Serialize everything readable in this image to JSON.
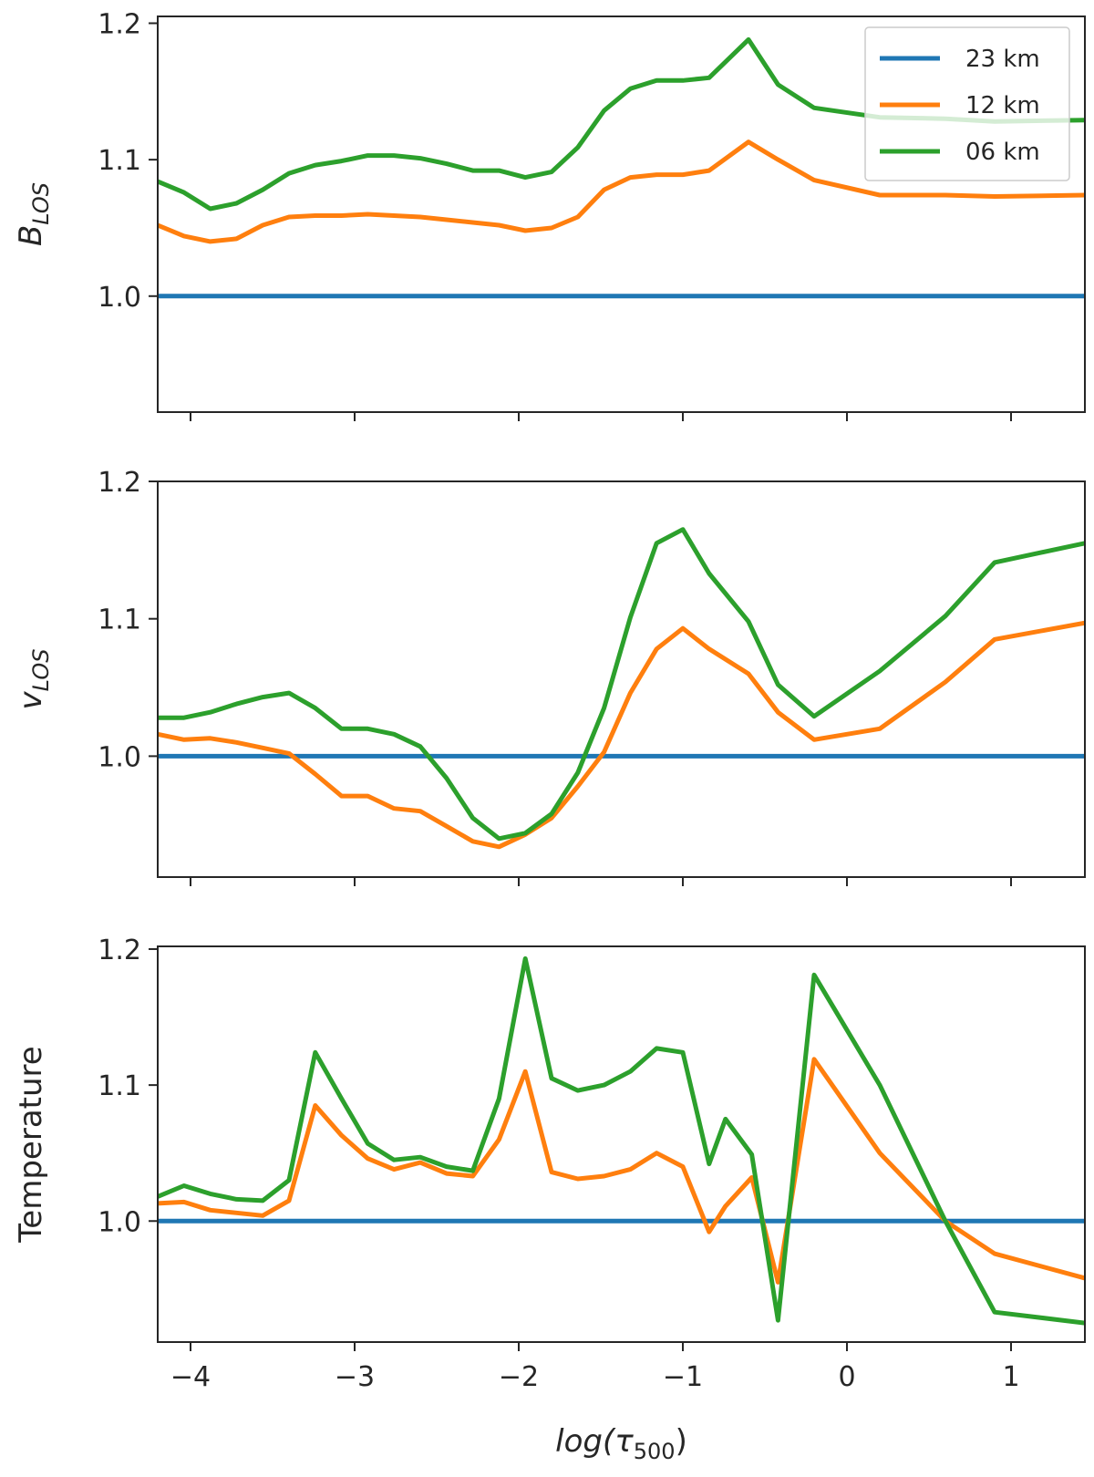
{
  "chart_data": {
    "type": "line",
    "xlabel_main": "log(τ",
    "xlabel_sub": "500",
    "xlabel_close": ")",
    "xlim": [
      -4.2,
      1.45
    ],
    "xticks": [
      -4,
      -3,
      -2,
      -1,
      0,
      1
    ],
    "xtick_labels": [
      "−4",
      "−3",
      "−2",
      "−1",
      "0",
      "1"
    ],
    "legend": [
      {
        "name": "23 km",
        "color": "#1f77b4"
      },
      {
        "name": "12 km",
        "color": "#ff7f0e"
      },
      {
        "name": "06 km",
        "color": "#2ca02c"
      }
    ],
    "legend_location": "top-right of first panel",
    "panels": [
      {
        "ylabel_main": "B",
        "ylabel_sub": "LOS",
        "ylim": [
          0.915,
          1.205
        ],
        "yticks": [
          1.0,
          1.1,
          1.2
        ],
        "ytick_labels": [
          "1.0",
          "1.1",
          "1.2"
        ],
        "x": [
          -4.2,
          -4.04,
          -3.88,
          -3.72,
          -3.56,
          -3.4,
          -3.24,
          -3.08,
          -2.92,
          -2.76,
          -2.6,
          -2.44,
          -2.28,
          -2.12,
          -1.96,
          -1.8,
          -1.64,
          -1.48,
          -1.32,
          -1.16,
          -1.0,
          -0.84,
          -0.6,
          -0.42,
          -0.2,
          0.2,
          0.6,
          0.9,
          1.45
        ],
        "series": [
          {
            "name": "23 km",
            "values": [
              1.0,
              1.0,
              1.0,
              1.0,
              1.0,
              1.0,
              1.0,
              1.0,
              1.0,
              1.0,
              1.0,
              1.0,
              1.0,
              1.0,
              1.0,
              1.0,
              1.0,
              1.0,
              1.0,
              1.0,
              1.0,
              1.0,
              1.0,
              1.0,
              1.0,
              1.0,
              1.0,
              1.0,
              1.0
            ]
          },
          {
            "name": "12 km",
            "values": [
              1.052,
              1.044,
              1.04,
              1.042,
              1.052,
              1.058,
              1.059,
              1.059,
              1.06,
              1.059,
              1.058,
              1.056,
              1.054,
              1.052,
              1.048,
              1.05,
              1.058,
              1.078,
              1.087,
              1.089,
              1.089,
              1.092,
              1.113,
              1.1,
              1.085,
              1.074,
              1.074,
              1.073,
              1.074
            ]
          },
          {
            "name": "06 km",
            "values": [
              1.084,
              1.076,
              1.064,
              1.068,
              1.078,
              1.09,
              1.096,
              1.099,
              1.103,
              1.103,
              1.101,
              1.097,
              1.092,
              1.092,
              1.087,
              1.091,
              1.109,
              1.136,
              1.152,
              1.158,
              1.158,
              1.16,
              1.188,
              1.155,
              1.138,
              1.131,
              1.13,
              1.128,
              1.129
            ]
          }
        ]
      },
      {
        "ylabel_main": "v",
        "ylabel_sub": "LOS",
        "ylim": [
          0.912,
          1.2
        ],
        "yticks": [
          1.0,
          1.1,
          1.2
        ],
        "ytick_labels": [
          "1.0",
          "1.1",
          "1.2"
        ],
        "x": [
          -4.2,
          -4.04,
          -3.88,
          -3.72,
          -3.56,
          -3.4,
          -3.24,
          -3.08,
          -2.92,
          -2.76,
          -2.6,
          -2.44,
          -2.28,
          -2.12,
          -1.96,
          -1.8,
          -1.64,
          -1.48,
          -1.32,
          -1.16,
          -1.0,
          -0.84,
          -0.6,
          -0.42,
          -0.2,
          0.2,
          0.6,
          0.9,
          1.45
        ],
        "series": [
          {
            "name": "23 km",
            "values": [
              1.0,
              1.0,
              1.0,
              1.0,
              1.0,
              1.0,
              1.0,
              1.0,
              1.0,
              1.0,
              1.0,
              1.0,
              1.0,
              1.0,
              1.0,
              1.0,
              1.0,
              1.0,
              1.0,
              1.0,
              1.0,
              1.0,
              1.0,
              1.0,
              1.0,
              1.0,
              1.0,
              1.0,
              1.0
            ]
          },
          {
            "name": "12 km",
            "values": [
              1.016,
              1.012,
              1.013,
              1.01,
              1.006,
              1.002,
              0.987,
              0.971,
              0.971,
              0.962,
              0.96,
              0.949,
              0.938,
              0.934,
              0.943,
              0.955,
              0.978,
              1.003,
              1.046,
              1.078,
              1.093,
              1.078,
              1.06,
              1.032,
              1.012,
              1.02,
              1.054,
              1.085,
              1.097
            ]
          },
          {
            "name": "06 km",
            "values": [
              1.028,
              1.028,
              1.032,
              1.038,
              1.043,
              1.046,
              1.035,
              1.02,
              1.02,
              1.016,
              1.007,
              0.984,
              0.955,
              0.94,
              0.944,
              0.958,
              0.988,
              1.035,
              1.101,
              1.155,
              1.165,
              1.133,
              1.098,
              1.052,
              1.029,
              1.062,
              1.102,
              1.141,
              1.155
            ]
          }
        ]
      },
      {
        "ylabel_main": "Temperature",
        "ylabel_sub": "",
        "ylim": [
          0.911,
          1.202
        ],
        "yticks": [
          1.0,
          1.1,
          1.2
        ],
        "ytick_labels": [
          "1.0",
          "1.1",
          "1.2"
        ],
        "x": [
          -4.2,
          -4.04,
          -3.88,
          -3.72,
          -3.56,
          -3.4,
          -3.24,
          -3.08,
          -2.92,
          -2.76,
          -2.6,
          -2.44,
          -2.28,
          -2.12,
          -1.96,
          -1.8,
          -1.64,
          -1.48,
          -1.32,
          -1.16,
          -1.0,
          -0.84,
          -0.74,
          -0.58,
          -0.42,
          -0.2,
          0.2,
          0.6,
          0.9,
          1.45
        ],
        "series": [
          {
            "name": "23 km",
            "values": [
              1.0,
              1.0,
              1.0,
              1.0,
              1.0,
              1.0,
              1.0,
              1.0,
              1.0,
              1.0,
              1.0,
              1.0,
              1.0,
              1.0,
              1.0,
              1.0,
              1.0,
              1.0,
              1.0,
              1.0,
              1.0,
              1.0,
              1.0,
              1.0,
              1.0,
              1.0,
              1.0,
              1.0,
              1.0,
              1.0
            ]
          },
          {
            "name": "12 km",
            "values": [
              1.013,
              1.014,
              1.008,
              1.006,
              1.004,
              1.015,
              1.085,
              1.063,
              1.046,
              1.038,
              1.043,
              1.035,
              1.033,
              1.06,
              1.11,
              1.036,
              1.031,
              1.033,
              1.038,
              1.05,
              1.04,
              0.992,
              1.011,
              1.032,
              0.955,
              1.119,
              1.05,
              1.0,
              0.976,
              0.958
            ]
          },
          {
            "name": "06 km",
            "values": [
              1.018,
              1.026,
              1.02,
              1.016,
              1.015,
              1.03,
              1.124,
              1.09,
              1.057,
              1.045,
              1.047,
              1.04,
              1.037,
              1.09,
              1.193,
              1.105,
              1.096,
              1.1,
              1.11,
              1.127,
              1.124,
              1.042,
              1.075,
              1.049,
              0.927,
              1.181,
              1.1,
              1.0,
              0.933,
              0.925
            ]
          }
        ]
      }
    ]
  }
}
